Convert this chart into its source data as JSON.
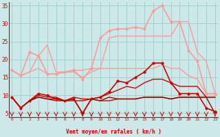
{
  "xlabel": "Vent moyen/en rafales ( km/h )",
  "x": [
    0,
    1,
    2,
    3,
    4,
    5,
    6,
    7,
    8,
    9,
    10,
    11,
    12,
    13,
    14,
    15,
    16,
    17,
    18,
    19,
    20,
    21,
    22,
    23
  ],
  "lines": [
    {
      "y": [
        17.0,
        15.5,
        22.0,
        21.0,
        16.0,
        16.0,
        16.5,
        17.0,
        14.5,
        17.5,
        26.0,
        28.0,
        28.5,
        28.5,
        29.0,
        28.5,
        33.5,
        35.0,
        30.5,
        30.5,
        22.5,
        19.5,
        10.5,
        10.5
      ],
      "color": "#ff9999",
      "lw": 1.2,
      "marker": "o",
      "ms": 2.0
    },
    {
      "y": [
        17.0,
        15.5,
        16.5,
        21.0,
        24.0,
        16.5,
        16.5,
        17.0,
        17.0,
        17.5,
        17.5,
        26.0,
        26.5,
        26.5,
        26.5,
        26.5,
        26.5,
        26.5,
        26.5,
        30.5,
        30.5,
        22.0,
        19.5,
        10.5
      ],
      "color": "#ff9999",
      "lw": 1.0,
      "marker": null,
      "ms": 0
    },
    {
      "y": [
        17.0,
        15.5,
        16.5,
        17.5,
        16.0,
        16.0,
        16.5,
        16.5,
        15.0,
        16.5,
        17.5,
        17.5,
        17.5,
        17.5,
        17.5,
        17.5,
        17.5,
        18.5,
        17.5,
        17.5,
        15.5,
        14.5,
        10.5,
        10.5
      ],
      "color": "#ff9999",
      "lw": 1.0,
      "marker": null,
      "ms": 0
    },
    {
      "y": [
        9.5,
        6.5,
        8.5,
        10.5,
        10.0,
        9.0,
        8.5,
        9.0,
        5.0,
        9.0,
        9.5,
        11.0,
        14.0,
        13.5,
        15.0,
        16.5,
        19.0,
        19.0,
        13.5,
        10.5,
        10.5,
        10.5,
        6.5,
        5.5
      ],
      "color": "#cc0000",
      "lw": 1.2,
      "marker": "o",
      "ms": 2.0
    },
    {
      "y": [
        9.5,
        6.5,
        8.5,
        10.0,
        9.5,
        9.5,
        8.5,
        9.5,
        9.0,
        9.0,
        9.5,
        10.5,
        11.5,
        12.5,
        12.0,
        13.5,
        14.5,
        14.5,
        13.5,
        12.5,
        12.5,
        12.5,
        9.5,
        9.5
      ],
      "color": "#cc0000",
      "lw": 1.0,
      "marker": null,
      "ms": 0
    },
    {
      "y": [
        9.5,
        6.5,
        8.5,
        9.5,
        9.0,
        8.5,
        8.5,
        8.5,
        8.5,
        9.0,
        8.5,
        8.5,
        9.0,
        9.0,
        9.0,
        9.5,
        9.5,
        9.5,
        9.0,
        9.5,
        9.5,
        9.5,
        9.5,
        9.5
      ],
      "color": "#cc0000",
      "lw": 1.0,
      "marker": null,
      "ms": 0
    },
    {
      "y": [
        9.5,
        6.5,
        8.5,
        9.5,
        9.0,
        9.0,
        8.5,
        9.0,
        5.0,
        9.0,
        8.5,
        9.5,
        9.0,
        9.0,
        9.0,
        9.5,
        9.5,
        9.5,
        9.0,
        9.5,
        9.5,
        9.5,
        9.5,
        5.0
      ],
      "color": "#990000",
      "lw": 1.0,
      "marker": null,
      "ms": 0
    }
  ],
  "ylim": [
    4,
    36
  ],
  "yticks": [
    5,
    10,
    15,
    20,
    25,
    30,
    35
  ],
  "xlim": [
    -0.3,
    23.3
  ],
  "bg_color": "#cce8e8",
  "grid_color": "#99cccc",
  "tick_color": "#cc0000",
  "label_color": "#cc0000"
}
